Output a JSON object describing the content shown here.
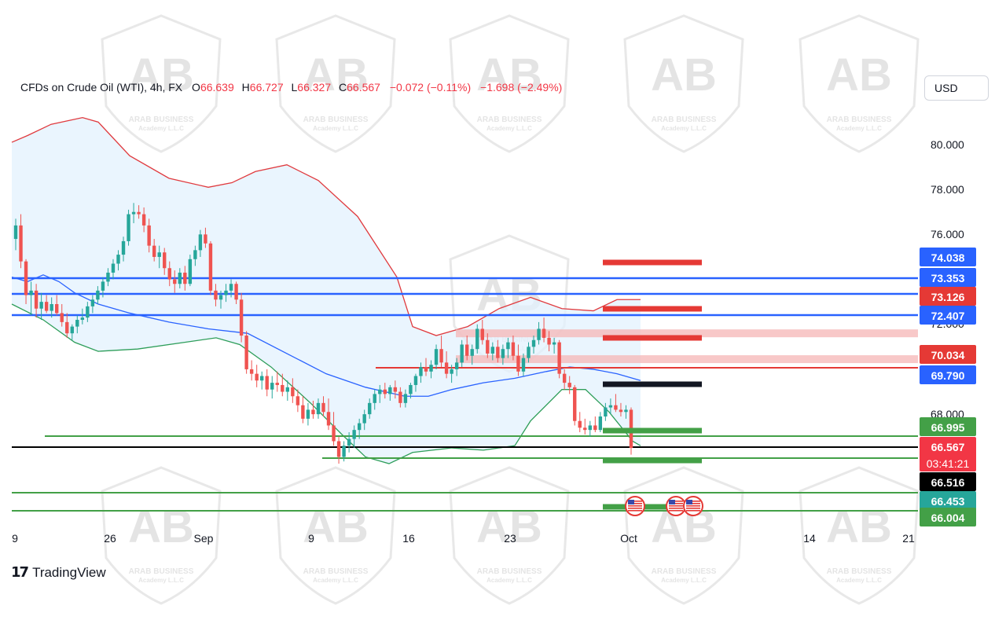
{
  "header": {
    "symbol": "CFDs on Crude Oil (WTI), 4h, FX",
    "open_label": "O",
    "open": "66.639",
    "high_label": "H",
    "high": "66.727",
    "low_label": "L",
    "low": "66.327",
    "close_label": "C",
    "close": "66.567",
    "change": "−0.072 (−0.11%)",
    "change2": "−1.698 (−2.49%)"
  },
  "currency": "USD",
  "branding": {
    "name": "TradingView"
  },
  "watermark": {
    "letters": "AB",
    "line1": "ARAB BUSINESS",
    "line2": "Academy L.L.C"
  },
  "colors": {
    "up": "#26a69a",
    "down": "#ef5350",
    "basis": "#2962ff",
    "upper_band": "#e03a3e",
    "lower_band": "#2e9e5a",
    "band_fill": "#e3f2fd",
    "support_blue": "#2962ff",
    "support_green": "#43a047",
    "resistance_red": "#e53935",
    "resistance_pink": "#f5b5b5",
    "current_price": "#000000"
  },
  "chart_data": {
    "type": "candlestick",
    "symbol": "CFDs on Crude Oil (WTI)",
    "timeframe": "4h",
    "ylim": [
      65.6,
      82.2
    ],
    "price_ticks": [
      "80.000",
      "78.000",
      "76.000",
      "72.000",
      "68.000"
    ],
    "time_ticks": [
      "9",
      "26",
      "Sep",
      "9",
      "16",
      "23",
      "Oct",
      "14",
      "21"
    ],
    "candles": [
      [
        75.9,
        76.8,
        75.4,
        76.5
      ],
      [
        76.5,
        77.0,
        74.6,
        74.9
      ],
      [
        74.9,
        75.0,
        73.0,
        73.4
      ],
      [
        73.4,
        74.0,
        72.5,
        73.6
      ],
      [
        73.6,
        73.9,
        72.4,
        72.8
      ],
      [
        72.8,
        73.5,
        72.3,
        73.1
      ],
      [
        73.1,
        73.4,
        72.6,
        72.7
      ],
      [
        72.7,
        73.3,
        72.4,
        73.0
      ],
      [
        73.0,
        73.4,
        72.5,
        72.6
      ],
      [
        72.6,
        73.0,
        72.0,
        72.2
      ],
      [
        72.2,
        72.6,
        71.5,
        71.7
      ],
      [
        71.7,
        72.1,
        71.4,
        72.0
      ],
      [
        72.0,
        72.5,
        71.7,
        72.3
      ],
      [
        72.3,
        72.8,
        72.1,
        72.4
      ],
      [
        72.4,
        73.1,
        72.2,
        72.9
      ],
      [
        72.9,
        73.4,
        72.6,
        73.2
      ],
      [
        73.2,
        73.8,
        73.0,
        73.6
      ],
      [
        73.6,
        74.2,
        73.3,
        74.0
      ],
      [
        74.0,
        74.6,
        73.8,
        74.4
      ],
      [
        74.4,
        75.0,
        74.1,
        74.8
      ],
      [
        74.8,
        75.4,
        74.5,
        75.2
      ],
      [
        75.2,
        76.0,
        74.9,
        75.8
      ],
      [
        75.8,
        77.2,
        75.6,
        77.0
      ],
      [
        77.0,
        77.5,
        76.6,
        77.1
      ],
      [
        77.1,
        77.4,
        76.8,
        77.0
      ],
      [
        77.0,
        77.3,
        76.2,
        76.5
      ],
      [
        76.5,
        76.8,
        75.3,
        75.6
      ],
      [
        75.6,
        75.9,
        74.9,
        75.1
      ],
      [
        75.1,
        75.6,
        74.6,
        75.3
      ],
      [
        75.3,
        75.5,
        74.3,
        74.6
      ],
      [
        74.6,
        74.9,
        73.8,
        74.1
      ],
      [
        74.1,
        74.5,
        73.5,
        73.9
      ],
      [
        73.9,
        74.6,
        73.7,
        74.4
      ],
      [
        74.4,
        74.7,
        73.6,
        73.9
      ],
      [
        73.9,
        75.2,
        73.8,
        75.0
      ],
      [
        75.0,
        75.6,
        74.7,
        75.4
      ],
      [
        75.4,
        76.3,
        75.1,
        76.1
      ],
      [
        76.1,
        76.4,
        75.5,
        75.7
      ],
      [
        75.7,
        75.8,
        73.4,
        73.6
      ],
      [
        73.6,
        73.9,
        72.9,
        73.2
      ],
      [
        73.2,
        73.6,
        72.8,
        73.4
      ],
      [
        73.4,
        73.9,
        73.1,
        73.6
      ],
      [
        73.6,
        74.1,
        73.3,
        73.9
      ],
      [
        73.9,
        74.0,
        73.0,
        73.2
      ],
      [
        73.2,
        73.5,
        71.3,
        71.6
      ],
      [
        71.6,
        71.8,
        69.9,
        70.1
      ],
      [
        70.1,
        70.5,
        69.6,
        69.9
      ],
      [
        69.9,
        70.3,
        69.3,
        69.6
      ],
      [
        69.6,
        70.0,
        69.2,
        69.8
      ],
      [
        69.8,
        70.1,
        68.9,
        69.2
      ],
      [
        69.2,
        69.8,
        68.8,
        69.5
      ],
      [
        69.5,
        70.0,
        69.1,
        69.4
      ],
      [
        69.4,
        69.9,
        68.9,
        69.1
      ],
      [
        69.1,
        69.6,
        68.7,
        69.3
      ],
      [
        69.3,
        69.7,
        68.6,
        68.9
      ],
      [
        68.9,
        69.2,
        68.2,
        68.5
      ],
      [
        68.5,
        68.9,
        67.7,
        67.9
      ],
      [
        67.9,
        68.6,
        67.6,
        68.3
      ],
      [
        68.3,
        68.7,
        67.9,
        68.1
      ],
      [
        68.1,
        68.8,
        67.9,
        68.6
      ],
      [
        68.6,
        68.9,
        68.0,
        68.2
      ],
      [
        68.2,
        68.8,
        67.4,
        67.6
      ],
      [
        67.6,
        68.2,
        66.7,
        66.9
      ],
      [
        66.9,
        67.1,
        65.9,
        66.2
      ],
      [
        66.2,
        66.9,
        66.0,
        66.7
      ],
      [
        66.7,
        67.3,
        66.4,
        67.0
      ],
      [
        67.0,
        67.6,
        66.6,
        67.4
      ],
      [
        67.4,
        67.9,
        67.0,
        67.7
      ],
      [
        67.7,
        68.3,
        67.4,
        68.1
      ],
      [
        68.1,
        68.8,
        67.9,
        68.6
      ],
      [
        68.6,
        69.2,
        68.3,
        69.0
      ],
      [
        69.0,
        69.4,
        68.6,
        69.2
      ],
      [
        69.2,
        69.5,
        68.8,
        69.0
      ],
      [
        69.0,
        69.4,
        68.7,
        69.3
      ],
      [
        69.3,
        69.6,
        68.8,
        69.1
      ],
      [
        69.1,
        69.3,
        68.4,
        68.6
      ],
      [
        68.6,
        69.2,
        68.4,
        69.0
      ],
      [
        69.0,
        69.5,
        68.8,
        69.4
      ],
      [
        69.4,
        69.9,
        69.1,
        69.8
      ],
      [
        69.8,
        70.4,
        69.5,
        70.2
      ],
      [
        70.2,
        70.6,
        69.8,
        70.0
      ],
      [
        70.0,
        70.5,
        69.7,
        70.3
      ],
      [
        70.3,
        71.2,
        70.1,
        71.0
      ],
      [
        71.0,
        71.6,
        70.2,
        70.4
      ],
      [
        70.4,
        70.9,
        69.7,
        69.9
      ],
      [
        69.9,
        70.3,
        69.5,
        70.1
      ],
      [
        70.1,
        70.6,
        69.8,
        70.4
      ],
      [
        70.4,
        71.4,
        70.2,
        71.2
      ],
      [
        71.2,
        71.6,
        70.5,
        70.7
      ],
      [
        70.7,
        71.2,
        70.3,
        71.0
      ],
      [
        71.0,
        72.1,
        70.8,
        71.9
      ],
      [
        71.9,
        72.3,
        71.2,
        71.4
      ],
      [
        71.4,
        71.7,
        70.6,
        70.8
      ],
      [
        70.8,
        71.3,
        70.5,
        71.1
      ],
      [
        71.1,
        71.4,
        70.4,
        70.6
      ],
      [
        70.6,
        71.2,
        70.3,
        71.0
      ],
      [
        71.0,
        71.5,
        70.6,
        71.3
      ],
      [
        71.3,
        71.6,
        70.5,
        70.7
      ],
      [
        70.7,
        71.2,
        69.8,
        70.0
      ],
      [
        70.0,
        70.8,
        69.8,
        70.6
      ],
      [
        70.6,
        71.3,
        70.4,
        71.1
      ],
      [
        71.1,
        71.6,
        70.8,
        71.4
      ],
      [
        71.4,
        72.2,
        71.2,
        71.9
      ],
      [
        71.9,
        72.4,
        71.3,
        71.5
      ],
      [
        71.5,
        71.8,
        70.9,
        71.2
      ],
      [
        71.2,
        71.5,
        70.8,
        71.3
      ],
      [
        71.3,
        71.4,
        69.7,
        69.9
      ],
      [
        69.9,
        70.1,
        69.2,
        69.5
      ],
      [
        69.5,
        69.8,
        69.0,
        69.3
      ],
      [
        69.3,
        69.4,
        67.6,
        67.8
      ],
      [
        67.8,
        68.2,
        67.3,
        67.5
      ],
      [
        67.5,
        67.9,
        67.2,
        67.4
      ],
      [
        67.4,
        67.8,
        67.1,
        67.6
      ],
      [
        67.6,
        68.0,
        67.3,
        67.4
      ],
      [
        67.4,
        68.2,
        67.3,
        68.0
      ],
      [
        68.0,
        68.6,
        67.8,
        68.4
      ],
      [
        68.4,
        68.8,
        68.1,
        68.5
      ],
      [
        68.5,
        69.0,
        68.2,
        68.3
      ],
      [
        68.3,
        68.6,
        68.0,
        68.2
      ],
      [
        68.2,
        68.5,
        67.9,
        68.3
      ],
      [
        68.3,
        68.4,
        66.3,
        66.6
      ]
    ],
    "bollinger": {
      "basis": [
        [
          0,
          74.2
        ],
        [
          20,
          74.0
        ],
        [
          40,
          74.3
        ],
        [
          60,
          74.0
        ],
        [
          80,
          73.5
        ],
        [
          110,
          73.0
        ],
        [
          150,
          72.6
        ],
        [
          200,
          72.2
        ],
        [
          250,
          71.9
        ],
        [
          300,
          71.7
        ],
        [
          350,
          70.8
        ],
        [
          400,
          69.9
        ],
        [
          450,
          69.3
        ],
        [
          500,
          68.9
        ],
        [
          530,
          68.9
        ],
        [
          560,
          69.2
        ],
        [
          600,
          69.5
        ],
        [
          640,
          69.7
        ],
        [
          680,
          70.0
        ],
        [
          710,
          70.2
        ],
        [
          740,
          70.1
        ],
        [
          770,
          69.9
        ],
        [
          800,
          69.6
        ]
      ],
      "upper": [
        [
          0,
          80.2
        ],
        [
          20,
          80.5
        ],
        [
          50,
          81.0
        ],
        [
          90,
          81.3
        ],
        [
          110,
          81.1
        ],
        [
          150,
          79.6
        ],
        [
          200,
          78.6
        ],
        [
          250,
          78.2
        ],
        [
          280,
          78.4
        ],
        [
          310,
          78.9
        ],
        [
          350,
          79.2
        ],
        [
          390,
          78.5
        ],
        [
          440,
          76.9
        ],
        [
          490,
          74.2
        ],
        [
          510,
          72.0
        ],
        [
          540,
          71.6
        ],
        [
          580,
          72.0
        ],
        [
          620,
          72.8
        ],
        [
          660,
          73.3
        ],
        [
          700,
          72.8
        ],
        [
          740,
          72.7
        ],
        [
          770,
          73.2
        ],
        [
          800,
          73.2
        ]
      ],
      "lower": [
        [
          0,
          73.0
        ],
        [
          40,
          72.3
        ],
        [
          80,
          71.3
        ],
        [
          110,
          70.9
        ],
        [
          160,
          71.0
        ],
        [
          220,
          71.3
        ],
        [
          260,
          71.5
        ],
        [
          290,
          71.2
        ],
        [
          330,
          70.2
        ],
        [
          380,
          68.6
        ],
        [
          420,
          67.2
        ],
        [
          450,
          66.2
        ],
        [
          480,
          65.9
        ],
        [
          510,
          66.4
        ],
        [
          560,
          66.6
        ],
        [
          600,
          66.5
        ],
        [
          640,
          66.7
        ],
        [
          660,
          67.8
        ],
        [
          700,
          69.2
        ],
        [
          730,
          69.2
        ],
        [
          760,
          68.2
        ],
        [
          790,
          66.9
        ],
        [
          800,
          66.7
        ]
      ]
    },
    "levels": [
      {
        "label": "74.038",
        "value": 74.038,
        "color": "#2962ff",
        "kind": "label-only"
      },
      {
        "label": "73.353",
        "value": 73.353,
        "color": "#2962ff",
        "kind": "line"
      },
      {
        "label": "73.126",
        "value": 73.126,
        "color": "#e53935",
        "kind": "line-blue"
      },
      {
        "label": "72.407",
        "value": 72.407,
        "color": "#2962ff",
        "kind": "line"
      },
      {
        "label": "70.034",
        "value": 70.034,
        "color": "#e53935",
        "kind": "label-only"
      },
      {
        "label": "69.790",
        "value": 69.79,
        "color": "#2962ff",
        "kind": "line-red"
      },
      {
        "label": "66.995",
        "value": 66.995,
        "color": "#43a047",
        "kind": "line"
      },
      {
        "label": "66.567",
        "value": 66.567,
        "color": "#f23645",
        "kind": "current",
        "countdown": "03:41:21"
      },
      {
        "label": "66.516",
        "value": 66.516,
        "color": "#000000",
        "kind": "line"
      },
      {
        "label": "66.453",
        "value": 66.453,
        "color": "#26a69a",
        "kind": "line"
      },
      {
        "label": "66.004",
        "value": 66.004,
        "color": "#43a047",
        "kind": "line"
      }
    ],
    "zones": [
      {
        "value": 74.0,
        "color": "#e53935"
      },
      {
        "value": 72.4,
        "color": "#e53935"
      },
      {
        "value": 71.1,
        "color": "#e53935"
      },
      {
        "value": 69.3,
        "color": "#131722"
      },
      {
        "value": 67.6,
        "color": "#43a047"
      },
      {
        "value": 66.6,
        "color": "#43a047"
      },
      {
        "value": 66.4,
        "color": "#43a047"
      }
    ],
    "pink_bands": [
      {
        "value": 71.7
      },
      {
        "value": 70.55
      }
    ],
    "events": [
      "US",
      "US",
      "US"
    ]
  }
}
